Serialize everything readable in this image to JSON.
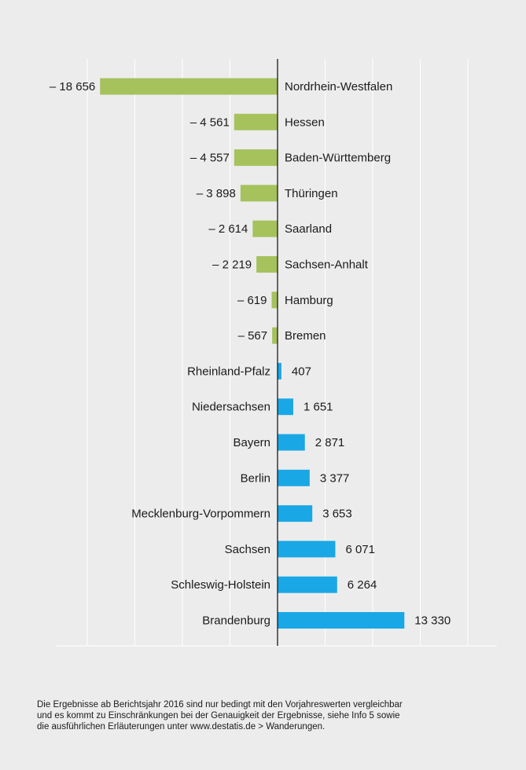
{
  "chart_data": {
    "type": "bar",
    "orientation": "horizontal",
    "categories": [
      "Nordrhein-Westfalen",
      "Hessen",
      "Baden-Württemberg",
      "Thüringen",
      "Saarland",
      "Sachsen-Anhalt",
      "Hamburg",
      "Bremen",
      "Rheinland-Pfalz",
      "Niedersachsen",
      "Bayern",
      "Berlin",
      "Mecklenburg-Vorpommern",
      "Sachsen",
      "Schleswig-Holstein",
      "Brandenburg"
    ],
    "values": [
      -18656,
      -4561,
      -4557,
      -3898,
      -2614,
      -2219,
      -619,
      -567,
      407,
      1651,
      2871,
      3377,
      3653,
      6071,
      6264,
      13330
    ],
    "value_labels": [
      "– 18 656",
      "– 4 561",
      "– 4 557",
      "– 3 898",
      "– 2 614",
      "– 2 219",
      "– 619",
      "– 567",
      "407",
      "1 651",
      "2 871",
      "3 377",
      "3 653",
      "6 071",
      "6 264",
      "13 330"
    ],
    "xlim": [
      -20000,
      20000
    ],
    "grid": true,
    "colors": {
      "negative": "#a5c25c",
      "positive": "#1aa7e5",
      "gridline": "#ffffff",
      "axis": "#1a1a1a"
    }
  },
  "footnote": {
    "lines": [
      "Die Ergebnisse ab Berichtsjahr 2016 sind nur bedingt mit den Vorjahreswerten vergleichbar",
      "und es kommt zu Einschränkungen bei der Genauigkeit der Ergebnisse, siehe Info 5 sowie",
      "die ausführlichen Erläuterungen unter www.destatis.de > Wanderungen."
    ]
  }
}
